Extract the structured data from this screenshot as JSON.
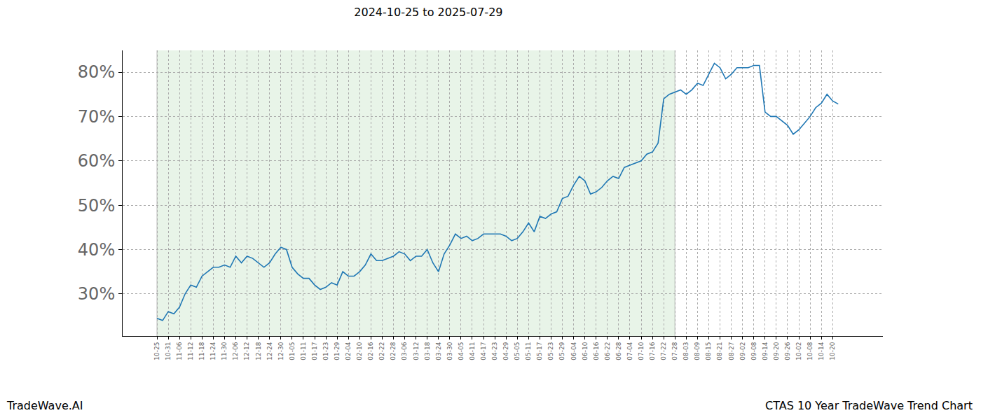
{
  "chart_data": {
    "type": "line",
    "title": "2024-10-25 to 2025-07-29",
    "annotations": [
      "TradeWave.AI",
      "CTAS 10 Year TradeWave Trend Chart"
    ],
    "categories": [
      "10-25",
      null,
      "10-31",
      null,
      "11-06",
      null,
      "11-12",
      null,
      "11-18",
      null,
      "11-24",
      null,
      "11-30",
      null,
      "12-06",
      null,
      "12-12",
      null,
      "12-18",
      null,
      "12-24",
      null,
      "12-30",
      null,
      "01-05",
      null,
      "01-11",
      null,
      "01-17",
      null,
      "01-23",
      null,
      "01-29",
      null,
      "02-04",
      null,
      "02-10",
      null,
      "02-16",
      null,
      "02-22",
      null,
      "02-28",
      null,
      "03-06",
      null,
      "03-12",
      null,
      "03-18",
      null,
      "03-24",
      null,
      "03-30",
      null,
      "04-05",
      null,
      "04-11",
      null,
      "04-17",
      null,
      "04-23",
      null,
      "04-29",
      null,
      "05-05",
      null,
      "05-11",
      null,
      "05-17",
      null,
      "05-23",
      null,
      "05-29",
      null,
      "06-04",
      null,
      "06-10",
      null,
      "06-16",
      null,
      "06-22",
      null,
      "06-28",
      null,
      "07-04",
      null,
      "07-10",
      null,
      "07-16",
      null,
      "07-22",
      null,
      "07-28",
      null,
      "08-03",
      null,
      "08-09",
      null,
      "08-15",
      null,
      "08-21",
      null,
      "08-27",
      null,
      "09-02",
      null,
      "09-08",
      null,
      "09-14",
      null,
      "09-20",
      null,
      "09-26",
      null,
      "10-02",
      null,
      "10-08",
      null,
      "10-14",
      null,
      "10-20",
      null
    ],
    "values": [
      24.5,
      24,
      26,
      25.5,
      27,
      30,
      32,
      31.5,
      34,
      35,
      36,
      36,
      36.5,
      36,
      38.5,
      37,
      38.5,
      38,
      37,
      36,
      37,
      39,
      40.5,
      40,
      36,
      34.5,
      33.5,
      33.5,
      32,
      31,
      31.5,
      32.5,
      32,
      35,
      34,
      34,
      35,
      36.5,
      39,
      37.5,
      37.5,
      38,
      38.5,
      39.5,
      39,
      37.5,
      38.5,
      38.5,
      40,
      37,
      35,
      39,
      41,
      43.5,
      42.5,
      43,
      42,
      42.5,
      43.5,
      43.5,
      43.5,
      43.5,
      43,
      42,
      42.5,
      44,
      46,
      44,
      47.5,
      47,
      48,
      48.5,
      51.5,
      52,
      54.5,
      56.5,
      55.5,
      52.5,
      53,
      54,
      55.5,
      56.5,
      56,
      58.5,
      59,
      59.5,
      60,
      61.5,
      62,
      64,
      74,
      75,
      75.5,
      76,
      75,
      76,
      77.5,
      77,
      79.5,
      82,
      81,
      78.5,
      79.5,
      81,
      81,
      81,
      81.5,
      81.5,
      71,
      70,
      70,
      69,
      68,
      66,
      67,
      68.5,
      70,
      72,
      73,
      75,
      73.5,
      72.8
    ],
    "color": "#1f77b4",
    "shaded_range": [
      "10-25",
      "07-28"
    ],
    "ylim": [
      20.5,
      84.9
    ],
    "yticks": [
      {
        "value": 30,
        "label": "30%"
      },
      {
        "value": 40,
        "label": "40%"
      },
      {
        "value": 50,
        "label": "50%"
      },
      {
        "value": 60,
        "label": "60%"
      },
      {
        "value": 70,
        "label": "70%"
      },
      {
        "value": 80,
        "label": "80%"
      }
    ],
    "grid": true
  }
}
